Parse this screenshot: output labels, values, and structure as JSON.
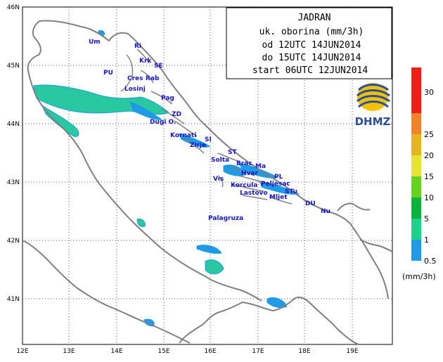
{
  "info_box": {
    "title": "JADRAN",
    "line1": "uk. oborina (mm/3h)",
    "line2": "od 12UTC 14JUN2014",
    "line3": "do 15UTC 14JUN2014",
    "line4": "start 06UTC 12JUN2014"
  },
  "axes": {
    "lon_labels": [
      "12E",
      "13E",
      "14E",
      "15E",
      "16E",
      "17E",
      "18E",
      "19E"
    ],
    "lat_labels": [
      "46N",
      "45N",
      "44N",
      "43N",
      "42N",
      "41N"
    ]
  },
  "places": [
    {
      "id": "Um",
      "label": "Um"
    },
    {
      "id": "Ri",
      "label": "Ri"
    },
    {
      "id": "Krk",
      "label": "Krk"
    },
    {
      "id": "SE",
      "label": "SE"
    },
    {
      "id": "PU",
      "label": "PU"
    },
    {
      "id": "Cres",
      "label": "Cres"
    },
    {
      "id": "Rab",
      "label": "Rab"
    },
    {
      "id": "Losinj",
      "label": "Losinj"
    },
    {
      "id": "Pag",
      "label": "Pag"
    },
    {
      "id": "ZD",
      "label": "ZD"
    },
    {
      "id": "Dugi",
      "label": "Dugi O."
    },
    {
      "id": "Kornati",
      "label": "Kornati"
    },
    {
      "id": "SI",
      "label": "SI"
    },
    {
      "id": "Zirje",
      "label": "Zirje"
    },
    {
      "id": "ST",
      "label": "ST"
    },
    {
      "id": "Solta",
      "label": "Solta"
    },
    {
      "id": "Brac",
      "label": "Brac"
    },
    {
      "id": "Ma",
      "label": "Ma"
    },
    {
      "id": "Hvar",
      "label": "Hvar"
    },
    {
      "id": "PL",
      "label": "PL"
    },
    {
      "id": "Vis",
      "label": "Vis"
    },
    {
      "id": "Korcula",
      "label": "Korcula"
    },
    {
      "id": "Peljesac",
      "label": "Peljesac"
    },
    {
      "id": "STu",
      "label": "STu"
    },
    {
      "id": "Lastovo",
      "label": "Lastovo"
    },
    {
      "id": "Mljet",
      "label": "Mljet"
    },
    {
      "id": "DU",
      "label": "DU"
    },
    {
      "id": "Nu",
      "label": "Nu"
    },
    {
      "id": "Palagruza",
      "label": "Palagruza"
    }
  ],
  "scale": {
    "unit": "(mm/3h)",
    "levels": [
      "0.5",
      "1",
      "5",
      "10",
      "15",
      "20",
      "25",
      "30"
    ],
    "colors": [
      "#1e9ae6",
      "#19d28c",
      "#0ab43c",
      "#64d21e",
      "#e6e632",
      "#e6b41e",
      "#f08228",
      "#f01e14"
    ]
  },
  "precip_color": "#28c8a0",
  "logo": {
    "text": "DHMZ"
  }
}
